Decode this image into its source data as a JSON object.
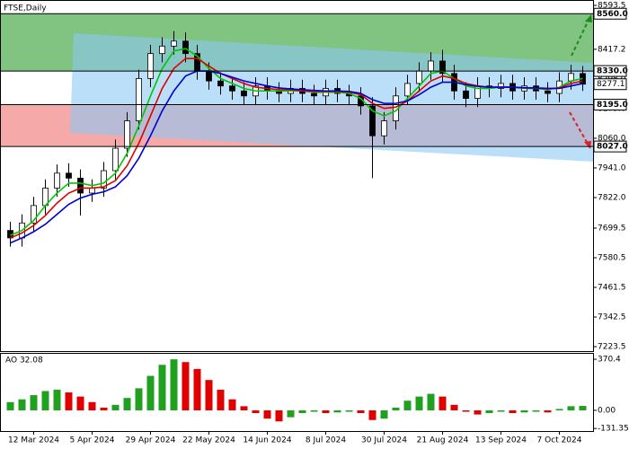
{
  "chart_data": {
    "type": "candlestick",
    "title": "FTSE,Daily",
    "categories": [
      null,
      null,
      "12 Mar 2024",
      null,
      null,
      null,
      null,
      "5 Apr 2024",
      null,
      null,
      null,
      null,
      "29 Apr 2024",
      null,
      null,
      null,
      null,
      "22 May 2024",
      null,
      null,
      null,
      null,
      "14 Jun 2024",
      null,
      null,
      null,
      null,
      "8 Jul 2024",
      null,
      null,
      null,
      null,
      "30 Jul 2024",
      null,
      null,
      null,
      null,
      "21 Aug 2024",
      null,
      null,
      null,
      null,
      "13 Sep 2024",
      null,
      null,
      null,
      null,
      "7 Oct 2024",
      null,
      null
    ],
    "open": [
      7690,
      7660,
      7720,
      7790,
      7860,
      7920,
      7900,
      7840,
      7860,
      7930,
      8020,
      8130,
      8300,
      8400,
      8430,
      8450,
      8400,
      8330,
      8290,
      8270,
      8250,
      8230,
      8270,
      8250,
      8240,
      8260,
      8240,
      8230,
      8260,
      8240,
      8230,
      8190,
      8070,
      8130,
      8230,
      8280,
      8330,
      8370,
      8320,
      8250,
      8220,
      8270,
      8260,
      8280,
      8250,
      8270,
      8250,
      8240,
      8290,
      8320
    ],
    "high": [
      7725,
      7755,
      7825,
      7895,
      7955,
      7960,
      7935,
      7895,
      7965,
      8055,
      8165,
      8335,
      8435,
      8465,
      8490,
      8485,
      8435,
      8365,
      8325,
      8305,
      8285,
      8305,
      8305,
      8285,
      8295,
      8295,
      8275,
      8295,
      8295,
      8275,
      8265,
      8225,
      8165,
      8265,
      8315,
      8365,
      8405,
      8415,
      8355,
      8285,
      8305,
      8305,
      8315,
      8315,
      8305,
      8305,
      8285,
      8325,
      8355,
      8350
    ],
    "low": [
      7625,
      7625,
      7685,
      7755,
      7825,
      7865,
      7750,
      7805,
      7825,
      7895,
      7985,
      8095,
      8265,
      8365,
      8395,
      8365,
      8295,
      8255,
      8235,
      8215,
      8195,
      8195,
      8215,
      8205,
      8205,
      8205,
      8195,
      8195,
      8205,
      8195,
      8155,
      7900,
      8035,
      8095,
      8195,
      8245,
      8295,
      8285,
      8215,
      8185,
      8185,
      8225,
      8225,
      8215,
      8215,
      8215,
      8205,
      8205,
      8255,
      8250
    ],
    "close": [
      7660,
      7720,
      7790,
      7860,
      7920,
      7900,
      7840,
      7860,
      7930,
      8020,
      8130,
      8300,
      8400,
      8430,
      8450,
      8400,
      8330,
      8290,
      8270,
      8250,
      8230,
      8270,
      8250,
      8240,
      8260,
      8240,
      8230,
      8260,
      8240,
      8230,
      8190,
      8070,
      8130,
      8230,
      8280,
      8330,
      8370,
      8320,
      8250,
      8220,
      8270,
      8260,
      8280,
      8250,
      8270,
      8250,
      8240,
      8290,
      8320,
      8277.1
    ],
    "up_color": "#ffffff",
    "down_color": "#000000",
    "series": [
      {
        "color": "#00c800",
        "values": [
          7670,
          7690,
          7730,
          7790,
          7840,
          7880,
          7880,
          7870,
          7880,
          7920,
          8000,
          8110,
          8230,
          8340,
          8410,
          8420,
          8390,
          8340,
          8300,
          8280,
          8260,
          8250,
          8250,
          8250,
          8250,
          8250,
          8245,
          8245,
          8245,
          8240,
          8220,
          8170,
          8150,
          8170,
          8220,
          8270,
          8320,
          8330,
          8300,
          8270,
          8260,
          8260,
          8265,
          8265,
          8260,
          8260,
          8255,
          8265,
          8290,
          8300
        ]
      },
      {
        "color": "#e00000",
        "values": [
          7660,
          7680,
          7710,
          7750,
          7800,
          7840,
          7860,
          7860,
          7865,
          7890,
          7950,
          8040,
          8150,
          8260,
          8340,
          8380,
          8380,
          8350,
          8320,
          8300,
          8280,
          8265,
          8260,
          8255,
          8255,
          8250,
          8248,
          8248,
          8248,
          8245,
          8235,
          8200,
          8180,
          8185,
          8210,
          8250,
          8290,
          8310,
          8300,
          8280,
          8270,
          8265,
          8265,
          8265,
          8262,
          8262,
          8258,
          8262,
          8280,
          8290
        ]
      },
      {
        "color": "#0000d0",
        "values": [
          7640,
          7660,
          7685,
          7715,
          7755,
          7795,
          7820,
          7835,
          7845,
          7865,
          7910,
          7980,
          8070,
          8170,
          8250,
          8310,
          8330,
          8330,
          8320,
          8305,
          8290,
          8280,
          8270,
          8262,
          8258,
          8255,
          8252,
          8250,
          8250,
          8248,
          8240,
          8215,
          8200,
          8200,
          8210,
          8235,
          8265,
          8285,
          8285,
          8275,
          8268,
          8265,
          8265,
          8265,
          8263,
          8262,
          8260,
          8260,
          8270,
          8280
        ]
      }
    ],
    "ylim": [
      7202,
      8615
    ],
    "yticks": [
      {
        "value": 8593.5,
        "label": "8593.5"
      },
      {
        "value": 8417.2,
        "label": "8417.2"
      },
      {
        "value": 8298.0,
        "label": "8298.0"
      },
      {
        "value": 8179.0,
        "label": "8179.0"
      },
      {
        "value": 8060.0,
        "label": "8060.0"
      },
      {
        "value": 7941.0,
        "label": "7941.0"
      },
      {
        "value": 7822.0,
        "label": "7822.0"
      },
      {
        "value": 7699.5,
        "label": "7699.5"
      },
      {
        "value": 7580.5,
        "label": "7580.5"
      },
      {
        "value": 7461.5,
        "label": "7461.5"
      },
      {
        "value": 7342.5,
        "label": "7342.5"
      },
      {
        "value": 7223.5,
        "label": "7223.5"
      }
    ],
    "zones": [
      {
        "top": {
          "value": 8560.0,
          "label": "8560.0"
        },
        "bottom": {
          "value": 8330.0,
          "label": "8330.0"
        },
        "color": "#6bb86b"
      },
      {
        "top": {
          "value": 8195.0,
          "label": "8195.0"
        },
        "bottom": {
          "value": 8027.0,
          "label": "8027.0"
        },
        "color": "#f49a9a"
      }
    ],
    "indicator": {
      "title": "AO 32.08",
      "up_color": "#1fa01f",
      "down_color": "#e00000",
      "values": [
        60,
        80,
        110,
        140,
        150,
        130,
        100,
        60,
        20,
        40,
        90,
        160,
        250,
        330,
        370,
        350,
        300,
        220,
        150,
        80,
        30,
        -20,
        -60,
        -80,
        -50,
        -20,
        -10,
        -20,
        -15,
        -10,
        -20,
        -70,
        -60,
        20,
        70,
        100,
        120,
        100,
        40,
        -10,
        -30,
        -20,
        -10,
        -20,
        -15,
        -10,
        -15,
        10,
        30,
        32.08
      ],
      "ylim": [
        -150,
        410
      ],
      "yticks": [
        {
          "value": 370.4,
          "label": "370.4"
        },
        {
          "value": 0,
          "label": "0.00"
        },
        {
          "value": -131.35,
          "label": "-131.35"
        }
      ]
    }
  }
}
